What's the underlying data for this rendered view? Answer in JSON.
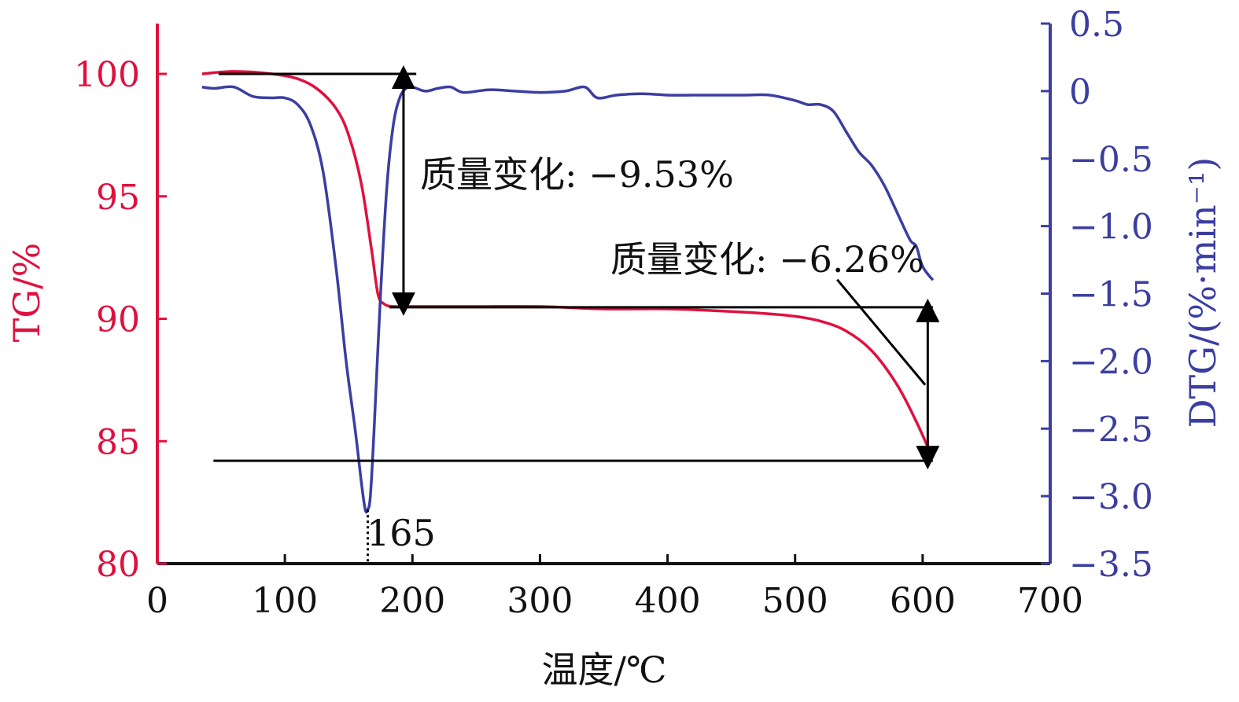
{
  "colors": {
    "tg": "#e0103e",
    "dtg": "#3b3ea1",
    "axis": "#111111",
    "annotation": "#000000"
  },
  "chart_data": {
    "type": "line",
    "xlabel": "温度/℃",
    "xlim": [
      0,
      700
    ],
    "x_ticks": [
      "0",
      "100",
      "200",
      "300",
      "400",
      "500",
      "600",
      "700"
    ],
    "y_left": {
      "label": "TG/%",
      "lim": [
        80,
        102
      ],
      "ticks": [
        "80",
        "85",
        "90",
        "95",
        "100"
      ]
    },
    "y_right": {
      "label": "DTG/(%·min⁻¹)",
      "lim": [
        -3.5,
        0.5
      ],
      "ticks": [
        "0.5",
        "0",
        "−0.5",
        "−1.0",
        "−1.5",
        "−2.0",
        "−2.5",
        "−3.0",
        "−3.5"
      ]
    },
    "grid": false,
    "series": [
      {
        "axis": "left",
        "x": [
          35,
          60,
          90,
          110,
          125,
          140,
          150,
          160,
          168,
          173,
          178,
          185,
          200,
          250,
          300,
          350,
          400,
          450,
          480,
          500,
          520,
          540,
          560,
          580,
          595,
          608
        ],
        "y": [
          100.0,
          100.1,
          100.0,
          99.8,
          99.4,
          98.6,
          97.5,
          95.5,
          92.8,
          91.0,
          90.6,
          90.5,
          90.5,
          90.5,
          90.5,
          90.4,
          90.4,
          90.3,
          90.2,
          90.1,
          89.9,
          89.5,
          88.7,
          87.3,
          85.8,
          84.3
        ]
      },
      {
        "axis": "right",
        "x": [
          35,
          45,
          60,
          75,
          90,
          100,
          110,
          120,
          130,
          140,
          148,
          155,
          160,
          163,
          165,
          167,
          170,
          175,
          180,
          185,
          190,
          195,
          200,
          210,
          220,
          230,
          240,
          260,
          280,
          300,
          320,
          335,
          345,
          360,
          380,
          400,
          420,
          440,
          460,
          480,
          500,
          510,
          520,
          530,
          540,
          550,
          560,
          570,
          580,
          590,
          595,
          600,
          608
        ],
        "y": [
          0.03,
          0.02,
          0.03,
          -0.04,
          -0.05,
          -0.05,
          -0.1,
          -0.25,
          -0.6,
          -1.3,
          -2.0,
          -2.5,
          -2.9,
          -3.1,
          -3.1,
          -3.0,
          -2.5,
          -1.5,
          -0.7,
          -0.25,
          -0.05,
          0.02,
          0.03,
          0.0,
          0.02,
          0.03,
          -0.01,
          0.01,
          0.0,
          -0.01,
          0.0,
          0.03,
          -0.05,
          -0.03,
          -0.02,
          -0.03,
          -0.03,
          -0.03,
          -0.03,
          -0.03,
          -0.07,
          -0.1,
          -0.1,
          -0.15,
          -0.3,
          -0.45,
          -0.55,
          -0.7,
          -0.9,
          -1.1,
          -1.15,
          -1.3,
          -1.4
        ]
      }
    ],
    "annotations": [
      {
        "text": "质量变化: −9.53%"
      },
      {
        "text": "质量变化: −6.26%"
      },
      {
        "text": "165"
      }
    ]
  }
}
